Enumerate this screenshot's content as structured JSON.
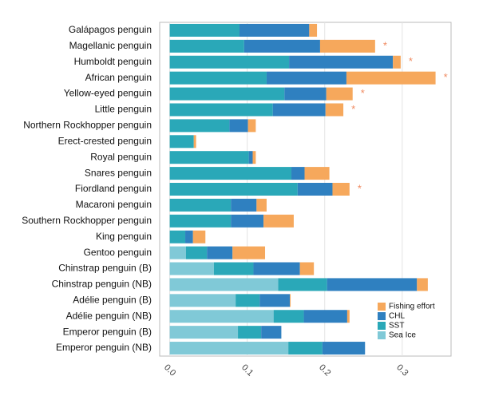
{
  "chart_data": {
    "type": "stacked-barh",
    "categories": [
      "Galápagos penguin",
      "Magellanic penguin",
      "Humboldt penguin",
      "African penguin",
      "Yellow-eyed penguin",
      "Little penguin",
      "Northern Rockhopper penguin",
      "Erect-crested penguin",
      "Royal penguin",
      "Snares penguin",
      "Fiordland penguin",
      "Macaroni penguin",
      "Southern Rockhopper penguin",
      "King penguin",
      "Gentoo penguin",
      "Chinstrap penguin (B)",
      "Chinstrap penguin (NB)",
      "Adélie penguin (B)",
      "Adélie penguin (NB)",
      "Emperor penguin (B)",
      "Emperor penguin (NB)"
    ],
    "series": [
      {
        "name": "Sea Ice",
        "color": "#80c9d7",
        "values": [
          0,
          0,
          0,
          0,
          0,
          0,
          0,
          0,
          0,
          0,
          0,
          0,
          0,
          0,
          0.021,
          0.057,
          0.14,
          0.085,
          0.134,
          0.088,
          0.153
        ]
      },
      {
        "name": "SST",
        "color": "#2aa8b8",
        "values": [
          0.09,
          0.096,
          0.154,
          0.125,
          0.148,
          0.133,
          0.077,
          0.031,
          0.102,
          0.157,
          0.165,
          0.079,
          0.079,
          0.02,
          0.027,
          0.051,
          0.063,
          0.031,
          0.039,
          0.03,
          0.044
        ]
      },
      {
        "name": "CHL",
        "color": "#2f80c0",
        "values": [
          0.09,
          0.098,
          0.134,
          0.103,
          0.054,
          0.068,
          0.024,
          0,
          0.005,
          0.017,
          0.045,
          0.033,
          0.042,
          0.01,
          0.033,
          0.06,
          0.116,
          0.039,
          0.056,
          0.026,
          0.055
        ]
      },
      {
        "name": "Fishing effort",
        "color": "#f6a85c",
        "values": [
          0.01,
          0.071,
          0.01,
          0.115,
          0.034,
          0.023,
          0.01,
          0.003,
          0.004,
          0.032,
          0.022,
          0.013,
          0.039,
          0.016,
          0.042,
          0.018,
          0.014,
          0.001,
          0.003,
          0,
          0
        ]
      }
    ],
    "significance": [
      null,
      "*",
      "*",
      "*",
      "*",
      "*",
      null,
      null,
      null,
      null,
      "*",
      null,
      null,
      null,
      null,
      null,
      null,
      null,
      null,
      null,
      null
    ],
    "significance_color": "#f08a60",
    "xlim": [
      -0.013,
      0.363
    ],
    "xticks": [
      {
        "value": 0,
        "label": "0.0"
      },
      0.1,
      0.2,
      0.3
    ],
    "grid": true,
    "legend": "lower-right"
  }
}
